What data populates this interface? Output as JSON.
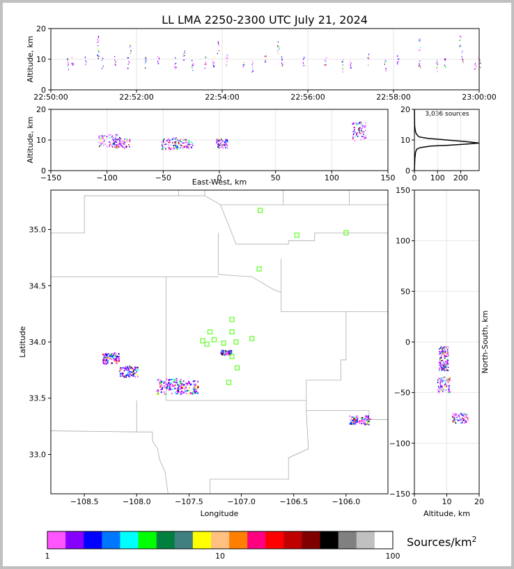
{
  "title": "LL LMA 2250-2300 UTC July 21, 2024",
  "source_count": "3,036 sources",
  "colorbar_label": "Sources/km",
  "colorbar_label_exp": "2",
  "colors": {
    "bins": [
      "#ff55ff",
      "#8800ff",
      "#0000ff",
      "#0077ff",
      "#00ffff",
      "#00ff00",
      "#008040",
      "#408080",
      "#ffff00",
      "#ffc080",
      "#ff8000",
      "#ff0080",
      "#ff0000",
      "#c00000",
      "#800000",
      "#000000",
      "#808080",
      "#c0c0c0",
      "#ffffff"
    ],
    "station": "#66ff33",
    "map_line": "#aaaaaa"
  },
  "chart_data": [
    {
      "name": "altitude-time",
      "type": "scatter",
      "ylabel": "Altitude, km",
      "x_ticks": [
        "22:50:00",
        "22:52:00",
        "22:54:00",
        "22:56:00",
        "22:58:00",
        "23:00:00"
      ],
      "x_range_min": [
        0,
        10
      ],
      "ylim": [
        0,
        20
      ],
      "y_ticks": [
        "0",
        "10",
        "20"
      ],
      "note": "x in minutes after 22:50:00 UTC; y altitude km",
      "points": [
        [
          0.4,
          8.5
        ],
        [
          0.5,
          9
        ],
        [
          0.8,
          10
        ],
        [
          1.1,
          12
        ],
        [
          1.2,
          9
        ],
        [
          1.5,
          10
        ],
        [
          1.8,
          9
        ],
        [
          2.2,
          9
        ],
        [
          2.5,
          10
        ],
        [
          2.9,
          9
        ],
        [
          3.1,
          11
        ],
        [
          3.3,
          8
        ],
        [
          3.6,
          9
        ],
        [
          3.8,
          9
        ],
        [
          4.1,
          10
        ],
        [
          4.5,
          9
        ],
        [
          4.7,
          8
        ],
        [
          5.0,
          10
        ],
        [
          5.4,
          9
        ],
        [
          5.9,
          10
        ],
        [
          6.4,
          9
        ],
        [
          6.8,
          8
        ],
        [
          7.0,
          9
        ],
        [
          7.4,
          10
        ],
        [
          7.8,
          8
        ],
        [
          8.1,
          10
        ],
        [
          8.6,
          9
        ],
        [
          9.0,
          8
        ],
        [
          9.2,
          9
        ],
        [
          9.6,
          11
        ],
        [
          9.9,
          8
        ],
        [
          10.0,
          9
        ],
        [
          1.1,
          16
        ],
        [
          1.85,
          13
        ],
        [
          3.9,
          14
        ],
        [
          5.3,
          14
        ],
        [
          8.6,
          15
        ],
        [
          9.55,
          16
        ]
      ]
    },
    {
      "name": "altitude-eastwest",
      "type": "scatter",
      "xlabel": "East-West, km",
      "ylabel": "Altitude, km",
      "xlim": [
        -150,
        150
      ],
      "ylim": [
        0,
        20
      ],
      "x_ticks": [
        "−150",
        "−100",
        "−50",
        "0",
        "50",
        "100",
        "150"
      ],
      "y_ticks": [
        "0",
        "10",
        "20"
      ],
      "clusters": [
        {
          "x": -98,
          "y": 10,
          "w": 10,
          "h": 4
        },
        {
          "x": -88,
          "y": 9,
          "w": 8,
          "h": 3
        },
        {
          "x": -45,
          "y": 9,
          "w": 7,
          "h": 4
        },
        {
          "x": -32,
          "y": 9,
          "w": 8,
          "h": 3
        },
        {
          "x": 2,
          "y": 9,
          "w": 5,
          "h": 3
        },
        {
          "x": 124,
          "y": 13,
          "w": 6,
          "h": 6
        }
      ]
    },
    {
      "name": "altitude-histogram",
      "type": "line",
      "xlim": [
        0,
        280
      ],
      "ylim": [
        0,
        20
      ],
      "x_ticks": [
        "0",
        "100",
        "200"
      ],
      "y_ticks": [
        "0",
        "10",
        "20"
      ],
      "x": [
        0,
        2,
        5,
        10,
        25,
        70,
        150,
        230,
        280,
        220,
        140,
        60,
        20,
        8,
        4,
        2,
        1,
        0
      ],
      "y": [
        0,
        4,
        6,
        7,
        7.5,
        8,
        8.3,
        8.7,
        9,
        9.5,
        10,
        10.5,
        11,
        12,
        13,
        14,
        15,
        20
      ]
    },
    {
      "name": "plan-view",
      "type": "scatter",
      "xlabel": "Longitude",
      "ylabel": "Latitude",
      "xlim": [
        -108.82,
        -105.6
      ],
      "ylim": [
        32.65,
        35.35
      ],
      "x_ticks": [
        "−108.5",
        "−108.0",
        "−107.5",
        "−107.0",
        "−106.5",
        "−106.0"
      ],
      "y_ticks": [
        "33.0",
        "33.5",
        "34.0",
        "34.5",
        "35.0"
      ],
      "stations": [
        [
          -106.82,
          35.17
        ],
        [
          -106.47,
          34.95
        ],
        [
          -106.0,
          34.97
        ],
        [
          -106.83,
          34.65
        ],
        [
          -107.09,
          34.2
        ],
        [
          -107.3,
          34.09
        ],
        [
          -107.09,
          34.09
        ],
        [
          -107.37,
          34.01
        ],
        [
          -107.26,
          34.02
        ],
        [
          -107.33,
          33.98
        ],
        [
          -107.17,
          33.99
        ],
        [
          -107.05,
          34.0
        ],
        [
          -106.9,
          34.03
        ],
        [
          -107.09,
          33.87
        ],
        [
          -107.04,
          33.77
        ],
        [
          -107.12,
          33.64
        ]
      ],
      "clusters": [
        {
          "lon": -108.25,
          "lat": 33.86,
          "w": 0.08,
          "h": 0.05
        },
        {
          "lon": -108.08,
          "lat": 33.74,
          "w": 0.09,
          "h": 0.05
        },
        {
          "lon": -107.7,
          "lat": 33.61,
          "w": 0.12,
          "h": 0.07
        },
        {
          "lon": -107.52,
          "lat": 33.6,
          "w": 0.1,
          "h": 0.06
        },
        {
          "lon": -107.15,
          "lat": 33.91,
          "w": 0.05,
          "h": 0.02
        },
        {
          "lon": -105.87,
          "lat": 33.31,
          "w": 0.1,
          "h": 0.04
        }
      ]
    },
    {
      "name": "altitude-northsouth",
      "type": "scatter",
      "xlabel": "Altitude, km",
      "ylabel": "North-South, km",
      "xlim": [
        0,
        20
      ],
      "ylim": [
        -150,
        150
      ],
      "x_ticks": [
        "0",
        "10",
        "20"
      ],
      "y_ticks": [
        "−150",
        "−100",
        "−50",
        "0",
        "50",
        "100",
        "150"
      ],
      "clusters": [
        {
          "x": 9,
          "y": -10,
          "w": 3,
          "h": 6
        },
        {
          "x": 9,
          "y": -22,
          "w": 3,
          "h": 6
        },
        {
          "x": 9,
          "y": -42,
          "w": 4,
          "h": 8
        },
        {
          "x": 14,
          "y": -75,
          "w": 5,
          "h": 5
        }
      ]
    },
    {
      "name": "colorbar",
      "type": "heatmap",
      "tick_labels": [
        "1",
        "10",
        "100"
      ]
    }
  ]
}
